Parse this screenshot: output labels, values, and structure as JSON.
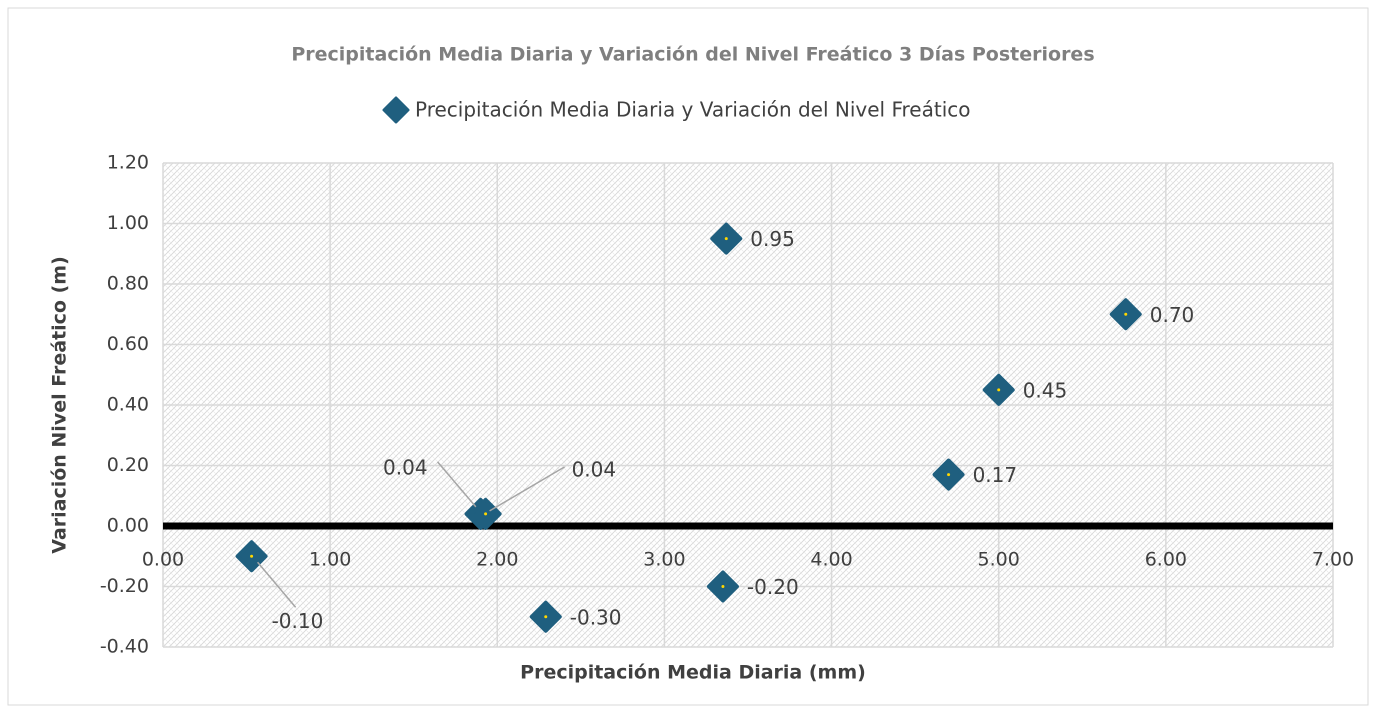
{
  "chart_data": {
    "type": "scatter",
    "title": "Precipitación Media Diaria y Variación del Nivel Freático 3 Días Posteriores",
    "xlabel": "Precipitación Media Diaria (mm)",
    "ylabel": "Variación Nivel Freático (m)",
    "series": [
      {
        "name": "Precipitación Media Diaria y Variación del Nivel Freático",
        "color": "#1f5f7f",
        "x": [
          0.53,
          1.9,
          1.93,
          2.29,
          3.37,
          3.35,
          4.7,
          5.0,
          5.76
        ],
        "values": [
          -0.1,
          0.04,
          0.04,
          -0.3,
          0.95,
          -0.2,
          0.17,
          0.45,
          0.7
        ],
        "value_labels": [
          "-0.10",
          "0.04",
          "0.04",
          "-0.30",
          "0.95",
          "-0.20",
          "0.17",
          "0.45",
          "0.70"
        ]
      }
    ],
    "xlim": [
      0,
      7
    ],
    "xticks": [
      {
        "value": 0,
        "label": "0.00"
      },
      {
        "value": 1,
        "label": "1.00"
      },
      {
        "value": 2,
        "label": "2.00"
      },
      {
        "value": 3,
        "label": "3.00"
      },
      {
        "value": 4,
        "label": "4.00"
      },
      {
        "value": 5,
        "label": "5.00"
      },
      {
        "value": 6,
        "label": "6.00"
      },
      {
        "value": 7,
        "label": "7.00"
      }
    ],
    "ylim": [
      -0.4,
      1.2
    ],
    "yticks": [
      {
        "value": -0.4,
        "label": "-0.40"
      },
      {
        "value": -0.2,
        "label": "-0.20"
      },
      {
        "value": 0,
        "label": "0.00"
      },
      {
        "value": 0.2,
        "label": "0.20"
      },
      {
        "value": 0.4,
        "label": "0.40"
      },
      {
        "value": 0.6,
        "label": "0.60"
      },
      {
        "value": 0.8,
        "label": "0.80"
      },
      {
        "value": 1.0,
        "label": "1.00"
      },
      {
        "value": 1.2,
        "label": "1.20"
      }
    ],
    "grid": true,
    "legend": "top"
  }
}
